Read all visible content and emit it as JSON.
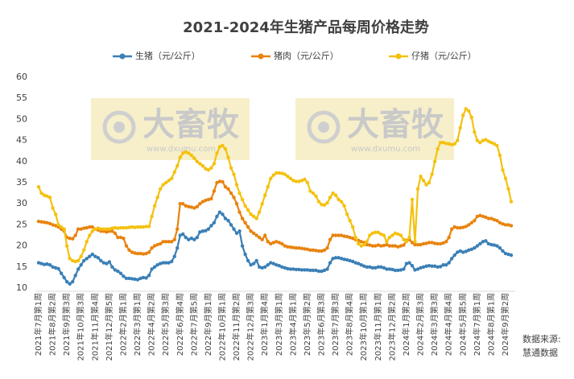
{
  "chart_data": {
    "type": "line",
    "title": "2021-2024年生猪产品每周价格走势",
    "watermark": {
      "text": "大畜牧",
      "url": "www.dxumu.com"
    },
    "note": [
      "数据来源:",
      "慧通数据"
    ],
    "ylim": [
      10,
      60
    ],
    "yticks": [
      10,
      15,
      20,
      25,
      30,
      35,
      40,
      45,
      50,
      55,
      60
    ],
    "grid": false,
    "legend": "top",
    "categories": [
      "2021年7月第1周",
      null,
      null,
      null,
      null,
      "2021年8月第2周",
      null,
      null,
      null,
      null,
      "2021年9月第3周",
      null,
      null,
      null,
      null,
      "2021年10月第3周",
      null,
      null,
      null,
      null,
      "2021年11月第4周",
      null,
      null,
      null,
      null,
      "2021年12月第5周",
      null,
      null,
      null,
      null,
      "2022年2月第1周",
      null,
      null,
      null,
      null,
      "2022年3月第1周",
      null,
      null,
      null,
      null,
      "2022年4月第2周",
      null,
      null,
      null,
      null,
      "2022年5月第3周",
      null,
      null,
      null,
      null,
      "2022年6月第4周",
      null,
      null,
      null,
      null,
      "2022年7月第5周",
      null,
      null,
      null,
      null,
      "2022年9月第1周",
      null,
      null,
      null,
      null,
      "2022年10月第1周",
      null,
      null,
      null,
      null,
      "2022年11月第2周",
      null,
      null,
      null,
      null,
      "2022年12月第3周",
      null,
      null,
      null,
      null,
      "2023年1月第4周",
      null,
      null,
      null,
      null,
      "2023年3月第1周",
      null,
      null,
      null,
      null,
      "2023年4月第1周",
      null,
      null,
      null,
      null,
      "2023年5月第2周",
      null,
      null,
      null,
      null,
      "2023年6月第3周",
      null,
      null,
      null,
      null,
      "2023年7月第3周",
      null,
      null,
      null,
      null,
      "2023年8月第4周",
      null,
      null,
      null,
      null,
      "2023年10月第1周",
      null,
      null,
      null,
      null,
      "2023年11月第1周",
      null,
      null,
      null,
      null,
      "2023年12月第2周",
      null,
      null,
      null,
      null,
      "2024年1月第2周",
      null,
      null,
      null,
      null,
      "2024年2月第3周",
      null,
      null,
      null,
      null,
      "2024年3月第3周",
      null,
      null,
      null,
      null,
      "2024年4月第4周",
      null,
      null,
      null,
      null,
      "2024年5月第5周",
      null,
      null,
      null,
      null,
      "2024年7月第1周",
      null,
      null,
      null,
      null,
      "2024年8月第1周",
      null,
      null,
      null,
      null,
      "2024年9月第2周",
      null,
      null
    ],
    "series": [
      {
        "name": "生猪（元/公斤）",
        "color": "#3a7fb6",
        "values": [
          16,
          15.8,
          15.6,
          15.7,
          15.5,
          15,
          14.8,
          14.6,
          13.5,
          12.5,
          11.5,
          11,
          11.5,
          13,
          14.5,
          15.5,
          16.5,
          17,
          17.5,
          18,
          17.5,
          17.2,
          16.5,
          16,
          15.8,
          16.2,
          15,
          14.3,
          14,
          13.5,
          12.8,
          12.3,
          12.3,
          12.2,
          12.1,
          12,
          12.3,
          12.5,
          12.4,
          13,
          14.5,
          15,
          15.5,
          15.8,
          16,
          16,
          16,
          16.3,
          17.5,
          19.5,
          22.5,
          22.8,
          22,
          21.5,
          21.8,
          21.5,
          22,
          23.3,
          23.5,
          23.6,
          24,
          24.8,
          25.5,
          27,
          28,
          27.5,
          26.5,
          26,
          25,
          24,
          23,
          23.5,
          20,
          18,
          16.5,
          15.5,
          15.8,
          16.5,
          15,
          14.8,
          15,
          15.5,
          16,
          15.8,
          15.5,
          15.3,
          15,
          14.8,
          14.6,
          14.5,
          14.5,
          14.4,
          14.4,
          14.3,
          14.3,
          14.3,
          14.2,
          14.2,
          14.2,
          14,
          14,
          14.2,
          14.5,
          16,
          17,
          17.2,
          17.2,
          17,
          16.8,
          16.7,
          16.5,
          16.3,
          16,
          15.8,
          15.5,
          15.2,
          15,
          15,
          14.8,
          14.8,
          15,
          15,
          14.8,
          14.5,
          14.5,
          14.4,
          14.2,
          14.2,
          14.3,
          14.5,
          15.8,
          16,
          15.3,
          14.3,
          14.5,
          14.8,
          15,
          15.2,
          15.3,
          15.2,
          15.2,
          15,
          15.1,
          15.5,
          15.5,
          16,
          17,
          17.8,
          18.5,
          18.8,
          18.5,
          18.7,
          19,
          19.2,
          19.5,
          20,
          20.5,
          21,
          21.2,
          20.5,
          20.3,
          20.2,
          20,
          19.5,
          18.8,
          18.2,
          18,
          17.8
        ]
      },
      {
        "name": "猪肉（元/公斤）",
        "color": "#e8830e",
        "values": [
          25.8,
          25.7,
          25.6,
          25.5,
          25.3,
          25,
          24.8,
          24.5,
          24,
          23.5,
          22,
          21.8,
          21.7,
          22.5,
          24,
          24,
          24.2,
          24.3,
          24.5,
          24.5,
          24,
          23.8,
          23.5,
          23.5,
          23.3,
          23.5,
          23.5,
          23,
          22,
          22,
          21.8,
          20,
          19,
          18.5,
          18.3,
          18.2,
          18.2,
          18.1,
          18.2,
          18.5,
          19.5,
          20,
          20.3,
          20.5,
          21,
          21,
          21,
          21,
          21.5,
          24,
          30,
          30,
          29.5,
          29.3,
          29.2,
          29,
          29.3,
          30,
          30.5,
          30.8,
          31,
          31.2,
          33,
          35,
          35.3,
          35.2,
          34,
          33.5,
          32.5,
          31.5,
          30,
          28,
          26.5,
          25.5,
          24.5,
          23.5,
          23,
          22.5,
          22,
          21.5,
          22.5,
          21,
          20.5,
          20.8,
          21,
          20.8,
          20.5,
          20,
          19.8,
          19.7,
          19.6,
          19.5,
          19.5,
          19.4,
          19.3,
          19.2,
          19,
          19,
          18.9,
          18.8,
          18.8,
          19,
          19.5,
          21.5,
          22.5,
          22.5,
          22.5,
          22.5,
          22.3,
          22.2,
          22,
          21.8,
          21.5,
          21.3,
          21,
          20.8,
          20.3,
          20.2,
          20,
          20,
          20.2,
          20,
          20.1,
          20.3,
          20,
          20,
          20,
          19.8,
          20,
          20.2,
          21.3,
          21.5,
          20.8,
          20.3,
          20.3,
          20.3,
          20.5,
          20.6,
          20.8,
          20.8,
          20.6,
          20.5,
          20.5,
          20.7,
          21,
          22,
          24,
          24.5,
          24.3,
          24.3,
          24.4,
          24.6,
          25,
          25.5,
          26,
          27,
          27.2,
          27,
          26.8,
          26.5,
          26.5,
          26.2,
          26,
          25.5,
          25.2,
          25,
          25,
          24.8
        ]
      },
      {
        "name": "仔猪（元/公斤）",
        "color": "#f4c10f",
        "values": [
          34,
          32.5,
          32,
          31.8,
          31.5,
          29,
          27.5,
          25,
          24.5,
          24,
          20,
          17,
          16.5,
          16.3,
          16.5,
          17.5,
          19,
          21,
          22.5,
          23.5,
          24,
          24.2,
          24,
          24,
          24,
          24,
          24.2,
          24.3,
          24.2,
          24.3,
          24.3,
          24.3,
          24.4,
          24.5,
          24.4,
          24.5,
          24.5,
          24.5,
          24.6,
          24.6,
          27,
          29.5,
          31.5,
          33.5,
          34.5,
          35,
          35.5,
          36,
          37.5,
          39,
          41,
          42,
          42.3,
          42,
          41.5,
          40.8,
          40,
          39.5,
          39,
          38.3,
          38,
          38.5,
          39.5,
          42,
          43.5,
          43.8,
          43,
          41,
          38.5,
          37,
          34.5,
          32.5,
          31,
          29.5,
          28.5,
          27.5,
          27,
          26.5,
          28,
          30,
          32,
          34,
          36,
          36.8,
          37.3,
          37.3,
          37.2,
          37,
          36.5,
          36,
          35.5,
          35.3,
          35.3,
          35.5,
          35.8,
          35,
          33,
          32.5,
          31.8,
          30.5,
          29.8,
          29.7,
          30.2,
          31.5,
          32.5,
          32,
          31,
          30.5,
          29.5,
          27.5,
          26,
          24.5,
          22,
          20.5,
          20,
          20.3,
          21,
          22.5,
          23,
          23.2,
          23.2,
          22.8,
          22.5,
          21,
          22,
          22.5,
          23,
          22.8,
          22.5,
          21.5,
          21,
          22,
          31,
          21,
          33.5,
          36.5,
          35.5,
          34.5,
          35,
          37,
          40,
          43,
          44.5,
          44.5,
          44.3,
          44.2,
          44,
          44.2,
          45,
          48,
          51,
          52.5,
          52,
          50.5,
          47,
          45,
          44.5,
          45,
          45.2,
          44.8,
          44.5,
          44.2,
          43.8,
          41.5,
          38,
          36,
          33.5,
          30.5
        ]
      }
    ]
  }
}
